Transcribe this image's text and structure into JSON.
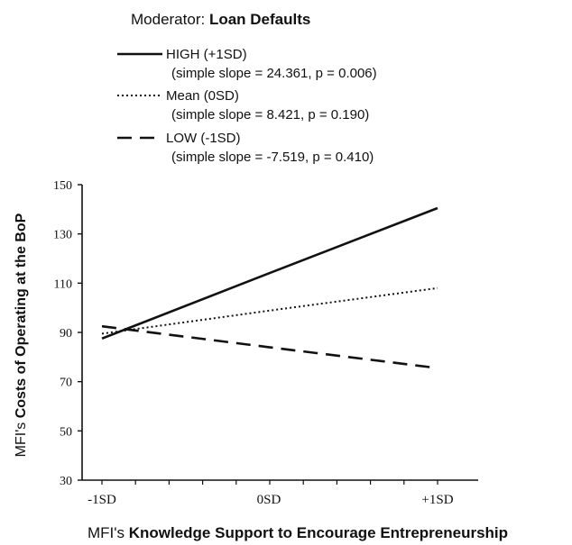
{
  "chart_data": {
    "type": "line",
    "legend_title": {
      "prefix": "Moderator: ",
      "emphasis": "Loan Defaults"
    },
    "categories": [
      "-1SD",
      "0SD",
      "+1SD"
    ],
    "series": [
      {
        "name": "HIGH (+1SD)",
        "detail": "(simple slope = 24.361, p = 0.006)",
        "style": "solid",
        "values": [
          87.5,
          114,
          140.5
        ]
      },
      {
        "name": "Mean (0SD)",
        "detail": "(simple slope = 8.421, p = 0.190)",
        "style": "dotted",
        "values": [
          89.5,
          98.8,
          108
        ]
      },
      {
        "name": "LOW (-1SD)",
        "detail": "(simple slope = -7.519, p = 0.410)",
        "style": "dashed",
        "values": [
          92.5,
          84,
          75.5
        ]
      }
    ],
    "xlabel": {
      "prefix": "MFI's ",
      "emphasis": "Knowledge Support to Encourage Entrepreneurship"
    },
    "ylabel": {
      "prefix": "MFI's ",
      "emphasis": "Costs of Operating at the BoP"
    },
    "ylim": [
      30,
      150
    ],
    "yticks": [
      "30",
      "50",
      "70",
      "90",
      "110",
      "130",
      "150"
    ],
    "grid": false,
    "legend_position": "top"
  }
}
